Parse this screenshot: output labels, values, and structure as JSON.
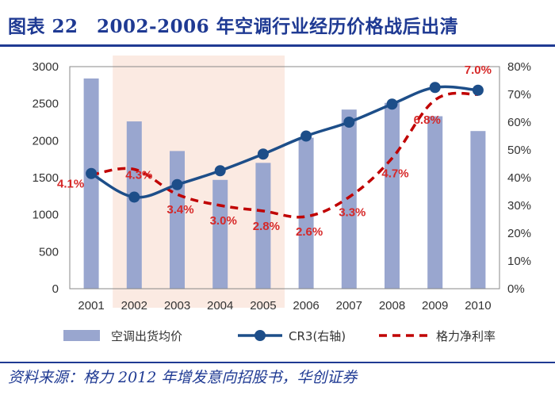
{
  "figure": {
    "title": "图表 22　2002-2006 年空调行业经历价格战后出清",
    "source": "资料来源：格力 2012 年增发意向招股书，华创证券"
  },
  "chart_data": {
    "type": "bar+line",
    "categories": [
      "2001",
      "2002",
      "2003",
      "2004",
      "2005",
      "2006",
      "2007",
      "2008",
      "2009",
      "2010"
    ],
    "highlight_range": [
      "2002",
      "2005"
    ],
    "left_axis": {
      "ticks": [
        "0",
        "500",
        "1000",
        "1500",
        "2000",
        "2500",
        "3000"
      ],
      "ylim": [
        0,
        3000
      ]
    },
    "right_axis": {
      "ticks": [
        "0%",
        "10%",
        "20%",
        "30%",
        "40%",
        "50%",
        "60%",
        "70%",
        "80%"
      ],
      "ylim": [
        0,
        80
      ]
    },
    "series": [
      {
        "name": "空调出货均价",
        "type": "bar",
        "axis": "left",
        "color": "#99a6cf",
        "values": [
          2840,
          2260,
          1860,
          1470,
          1700,
          2040,
          2420,
          2510,
          2330,
          2130
        ]
      },
      {
        "name": "CR3(右轴)",
        "type": "line",
        "axis": "right",
        "color": "#1d4e89",
        "values": [
          41.5,
          33,
          37.5,
          42.5,
          48.5,
          55,
          60,
          66.5,
          72.5,
          71.5
        ]
      },
      {
        "name": "格力净利率",
        "type": "dashed-line",
        "axis": "right",
        "color": "#c00000",
        "values": [
          4.1,
          4.3,
          3.4,
          3.0,
          2.8,
          2.6,
          3.3,
          4.7,
          6.8,
          7.0
        ]
      }
    ],
    "data_labels": [
      "4.1%",
      "4.3%",
      "3.4%",
      "3.0%",
      "2.8%",
      "2.6%",
      "3.3%",
      "4.7%",
      "6.8%",
      "7.0%"
    ]
  }
}
